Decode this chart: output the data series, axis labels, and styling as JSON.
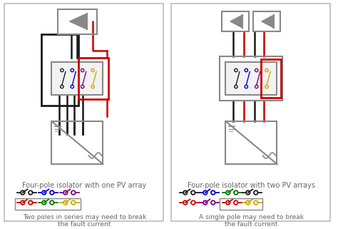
{
  "panel1_title": "Four-pole isolator with one PV array",
  "panel1_caption": "Two poles in series may need to break\nthe fault current",
  "panel2_title": "Four-pole isolator with two PV arrays",
  "panel2_caption": "A single pole may need to break\nthe fault current",
  "bg_color": "#ffffff",
  "panel_border_color": "#bbbbbb",
  "text_color": "#666666",
  "black": "#1a1a1a",
  "red": "#cc0000",
  "blue": "#0000cc",
  "purple": "#800080",
  "green": "#007700",
  "yellow": "#ccaa00",
  "gray_box": "#e0e0e0",
  "gray_line": "#888888"
}
